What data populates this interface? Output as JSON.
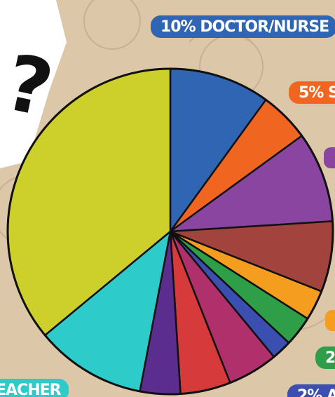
{
  "chart_data": {
    "type": "pie",
    "values": [
      10,
      5,
      9,
      7,
      3,
      3,
      2,
      5,
      5,
      4,
      11,
      36
    ],
    "colors": [
      "#3065b3",
      "#f0651f",
      "#8a45a0",
      "#a3433e",
      "#f59d1f",
      "#2f9e48",
      "#3a4fb0",
      "#b0306c",
      "#d63a3a",
      "#5a2d8f",
      "#2ecbcb",
      "#cdcf2a"
    ],
    "annotations": [
      "10% DOCTOR/NURSE",
      "5% S",
      "2",
      "2% A",
      "EACHER",
      "?"
    ]
  }
}
